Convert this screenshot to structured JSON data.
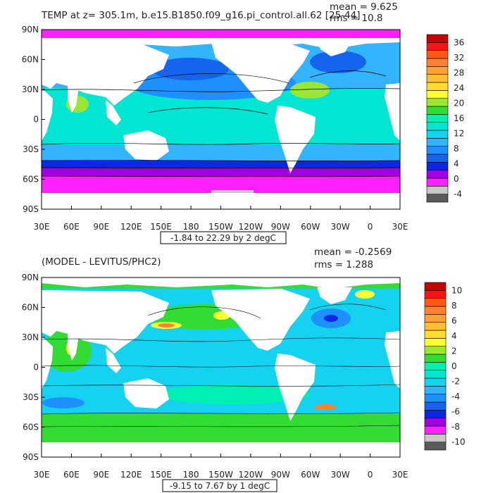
{
  "chart_data": [
    {
      "type": "heatmap",
      "title": "TEMP at z= 305.1m, b.e15.B1850.f09_g16.pi_control.all.62 [25-44]",
      "stats": {
        "mean": "mean = 9.625",
        "rms": "rms = 10.8"
      },
      "range_label": "-1.84 to 22.29 by 2 degC",
      "x_ticks": [
        "30E",
        "60E",
        "90E",
        "120E",
        "150E",
        "180",
        "150W",
        "120W",
        "90W",
        "60W",
        "30W",
        "0",
        "30E"
      ],
      "y_ticks": [
        "90N",
        "60N",
        "30N",
        "0",
        "30S",
        "60S",
        "90S"
      ],
      "colorbar": {
        "labels": [
          "36",
          "32",
          "28",
          "24",
          "20",
          "16",
          "12",
          "8",
          "4",
          "0",
          "-4"
        ],
        "colors": [
          "#5a5a5a",
          "#c8c8c8",
          "#ff20ff",
          "#a000e0",
          "#0a28e6",
          "#1464f0",
          "#1e90ff",
          "#32b4ff",
          "#14d2f0",
          "#00e6d2",
          "#00f0b4",
          "#32dc32",
          "#9be632",
          "#ffff32",
          "#ffdc32",
          "#ffbe32",
          "#ffa032",
          "#ff8232",
          "#ff5a14",
          "#ff1414",
          "#c80000"
        ]
      }
    },
    {
      "type": "heatmap",
      "title": "(MODEL - LEVITUS/PHC2)",
      "stats": {
        "mean": "mean = -0.2569",
        "rms": "rms = 1.288"
      },
      "range_label": "-9.15 to 7.67 by 1 degC",
      "x_ticks": [
        "30E",
        "60E",
        "90E",
        "120E",
        "150E",
        "180",
        "150W",
        "120W",
        "90W",
        "60W",
        "30W",
        "0",
        "30E"
      ],
      "y_ticks": [
        "90N",
        "60N",
        "30N",
        "0",
        "30S",
        "60S",
        "90S"
      ],
      "colorbar": {
        "labels": [
          "10",
          "8",
          "6",
          "4",
          "2",
          "0",
          "-2",
          "-4",
          "-6",
          "-8",
          "-10"
        ],
        "colors": [
          "#5a5a5a",
          "#c8c8c8",
          "#ff20ff",
          "#a000e0",
          "#0a28e6",
          "#1464f0",
          "#1e90ff",
          "#32b4ff",
          "#14d2f0",
          "#00e6d2",
          "#00f0b4",
          "#32dc32",
          "#9be632",
          "#ffff32",
          "#ffdc32",
          "#ffbe32",
          "#ffa032",
          "#ff8232",
          "#ff5a14",
          "#ff1414",
          "#c80000"
        ]
      }
    }
  ],
  "map_colors": {
    "land": "#ffffff",
    "top_base": "#32b4ff",
    "top_tropics": "#00e6d2",
    "top_north_pacific": "#1e90ff",
    "top_subpolar": "#1464f0",
    "top_southern_band": "#0a28e6",
    "top_southern_ocean": "#a000e0",
    "top_polar": "#ff20ff",
    "top_ice": "#c8c8c8",
    "top_warm": "#9be632",
    "bottom_base": "#14d2f0",
    "bottom_pos": "#00f0b4",
    "bottom_pos2": "#32dc32",
    "bottom_warm": "#ffff32",
    "bottom_hot": "#ff8232",
    "bottom_cold": "#1e90ff",
    "bottom_colder": "#0a28e6"
  }
}
